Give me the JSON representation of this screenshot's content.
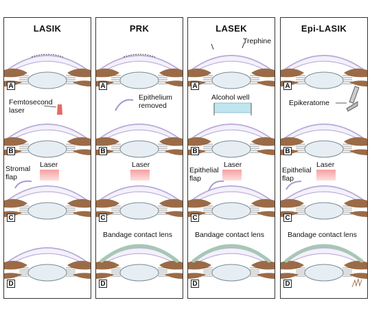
{
  "panels": [
    {
      "title": "LASIK",
      "steps": [
        "A",
        "B",
        "C",
        "D"
      ],
      "labels": {
        "femto": "Femtosecond\nlaser",
        "flap": "Stromal\nflap",
        "laser": "Laser"
      }
    },
    {
      "title": "PRK",
      "steps": [
        "A",
        "B",
        "C",
        "D"
      ],
      "labels": {
        "epi": "Epithelium\nremoved",
        "laser": "Laser",
        "lens": "Bandage contact lens"
      }
    },
    {
      "title": "LASEK",
      "steps": [
        "A",
        "B",
        "C",
        "D"
      ],
      "labels": {
        "trephine": "Trephine",
        "alcohol": "Alcohol well",
        "flap": "Epithelial\nflap",
        "laser": "Laser",
        "lens": "Bandage contact lens"
      }
    },
    {
      "title": "Epi-LASIK",
      "steps": [
        "A",
        "B",
        "C",
        "D"
      ],
      "labels": {
        "epikeratome": "Epikeratome",
        "flap": "Epithelial\nflap",
        "laser": "Laser",
        "lens": "Bandage contact lens"
      }
    }
  ],
  "colors": {
    "cornea": "#a99ad0",
    "tissue": "#9b6b47",
    "lens": "#e6eef3",
    "laser": "#f5a0a0",
    "bandage": "#a7c7b5",
    "alcohol": "#bfe6ee"
  }
}
